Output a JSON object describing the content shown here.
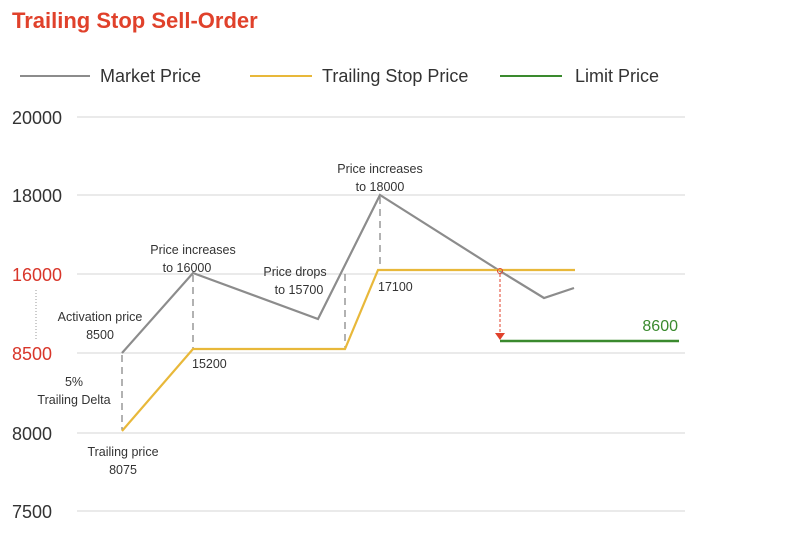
{
  "title": "Trailing Stop Sell-Order",
  "legend": [
    {
      "label": "Market Price",
      "color": "#8c8c8c"
    },
    {
      "label": "Trailing Stop Price",
      "color": "#e8b83a"
    },
    {
      "label": "Limit Price",
      "color": "#3a8a2e"
    }
  ],
  "y_ticks": [
    "20000",
    "18000",
    "16000",
    "8500",
    "8000",
    "7500"
  ],
  "highlighted_ticks": [
    "16000",
    "8500"
  ],
  "annotations": {
    "activation_1": "Activation price",
    "activation_2": "8500",
    "delta_1": "5%",
    "delta_2": "Trailing Delta",
    "trailing_1": "Trailing price",
    "trailing_2": "8075",
    "inc16_1": "Price increases",
    "inc16_2": "to 16000",
    "stop_15200": "15200",
    "drop_1": "Price drops",
    "drop_2": "to 15700",
    "inc18_1": "Price increases",
    "inc18_2": "to 18000",
    "stop_17100": "17100",
    "limit": "8600"
  },
  "colors": {
    "title": "#e0412b",
    "trigger": "#e0412b"
  }
}
